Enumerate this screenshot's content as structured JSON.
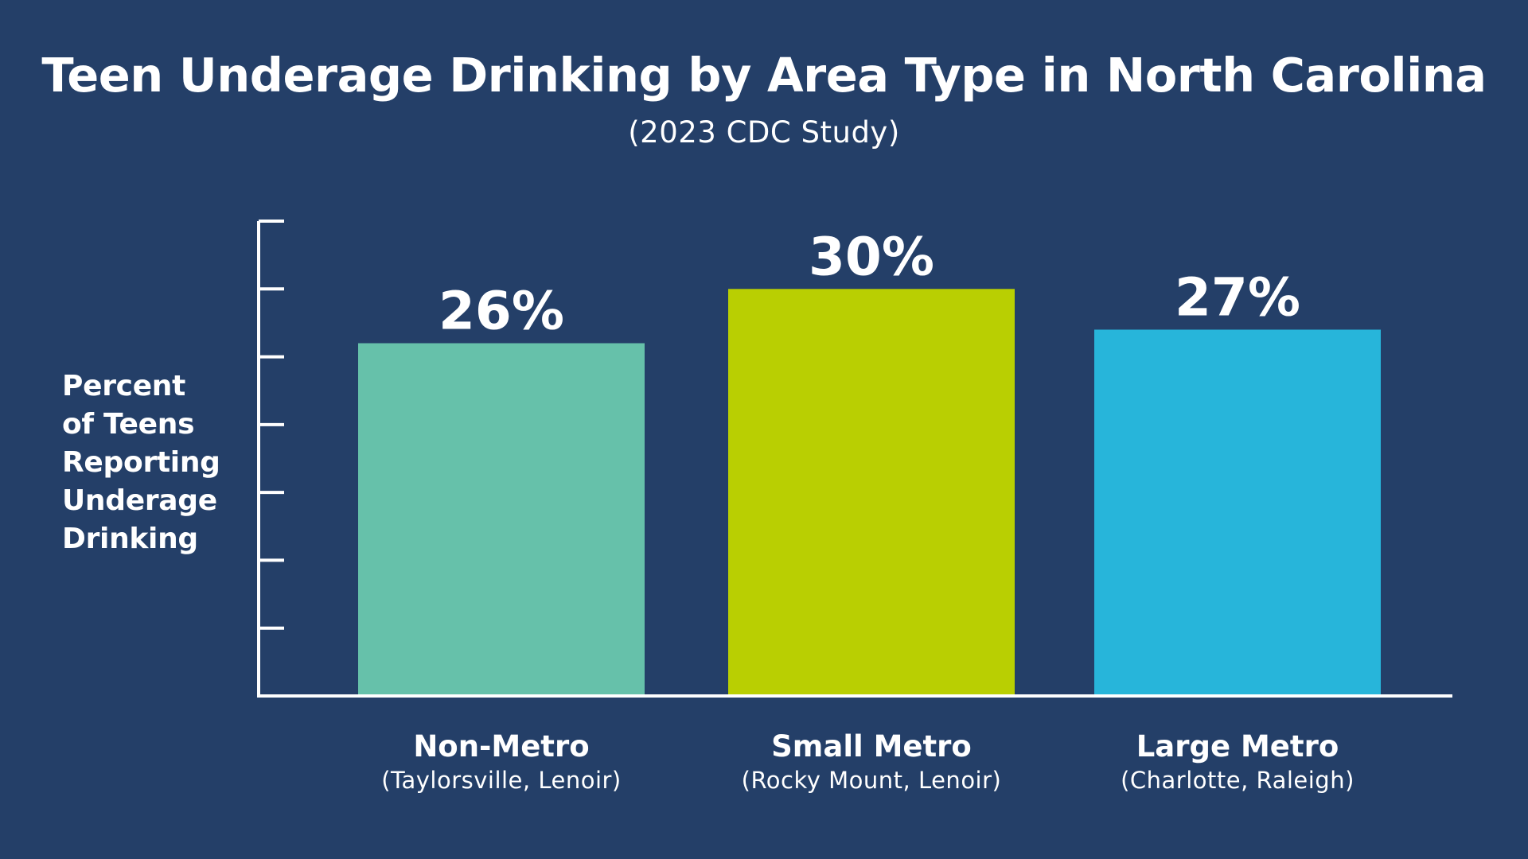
{
  "chart_data": {
    "type": "bar",
    "title": "Teen Underage Drinking by Area Type in North Carolina",
    "subtitle": "(2023 CDC Study)",
    "ylabel_lines": [
      "Percent",
      "of Teens",
      "Reporting",
      "Underage",
      "Drinking"
    ],
    "xlabel": "",
    "ylim": [
      0,
      35
    ],
    "ytick_count": 7,
    "grid": false,
    "categories": [
      "Non-Metro",
      "Small Metro",
      "Large Metro"
    ],
    "category_subtitles": [
      "(Taylorsville, Lenoir)",
      "(Rocky Mount, Lenoir)",
      "(Charlotte, Raleigh)"
    ],
    "values": [
      26,
      30,
      27
    ],
    "value_labels": [
      "26%",
      "30%",
      "27%"
    ],
    "bar_colors": [
      "#66c1aa",
      "#b9cf02",
      "#27b5da"
    ]
  },
  "colors": {
    "background": "#243f68",
    "text": "#ffffff",
    "axis": "#ffffff"
  }
}
